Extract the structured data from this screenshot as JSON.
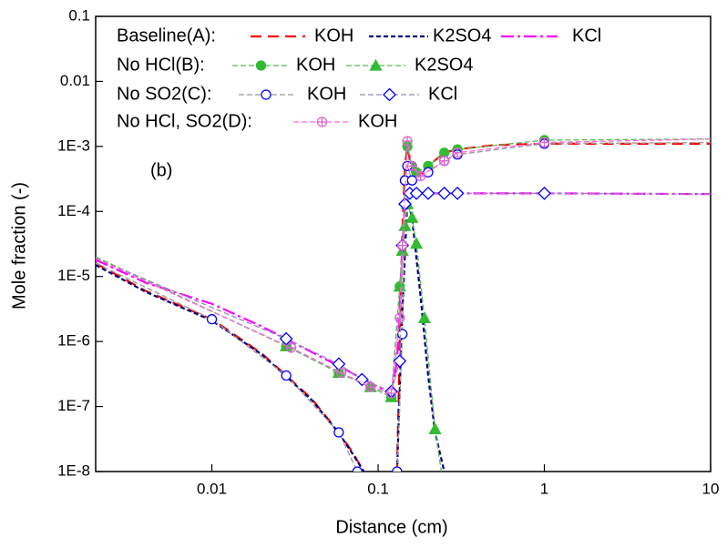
{
  "chart_data": {
    "type": "line",
    "x_label": "Distance (cm)",
    "y_label": "Mole fraction (-)",
    "annotation": "(b)",
    "log_x": true,
    "log_y": true,
    "xlim": [
      0.002,
      10
    ],
    "xticks": [
      0.01,
      0.1,
      1,
      10
    ],
    "ylim": [
      1e-08,
      0.1
    ],
    "yticks": [
      0.1,
      0.01,
      {
        "value": 0.001,
        "label": "1E-3"
      },
      {
        "value": 0.0001,
        "label": "1E-4"
      },
      {
        "value": 1e-05,
        "label": "1E-5"
      },
      {
        "value": 1e-06,
        "label": "1E-6"
      },
      {
        "value": 1e-07,
        "label": "1E-7"
      },
      {
        "value": 1e-08,
        "label": "1E-8"
      }
    ],
    "groups": [
      {
        "label": "Baseline(A):",
        "series": [
          {
            "name": "KOH",
            "color": "#ff0000",
            "dash": "12 7",
            "width": 2.2,
            "marker": "none",
            "x": [
              0.002,
              0.004,
              0.01,
              0.02,
              0.028,
              0.04,
              0.058,
              0.07,
              0.082,
              0.1,
              0.13,
              0.135,
              0.14,
              0.145,
              0.15,
              0.16,
              0.18,
              0.2,
              0.25,
              0.3,
              0.5,
              1,
              10
            ],
            "values": [
              1.6e-05,
              6e-06,
              2.2e-06,
              6.5e-07,
              3e-07,
              1.3e-07,
              4e-08,
              2e-08,
              1e-08,
              null,
              1e-08,
              1e-06,
              5e-05,
              0.0005,
              0.001,
              0.0004,
              0.00035,
              0.0005,
              0.0008,
              0.0009,
              0.00105,
              0.0011,
              0.0011
            ]
          },
          {
            "name": "K2SO4",
            "color": "#000080",
            "dash": "5 3",
            "width": 2.2,
            "marker": "none",
            "x": [
              0.002,
              0.004,
              0.01,
              0.02,
              0.028,
              0.04,
              0.058,
              0.07,
              0.082,
              0.1,
              0.13,
              0.14,
              0.15,
              0.16,
              0.18,
              0.2,
              0.22,
              0.25
            ],
            "values": [
              1.5e-05,
              5.8e-06,
              2.1e-06,
              6.3e-07,
              2.9e-07,
              1.25e-07,
              3.9e-08,
              1.9e-08,
              1e-08,
              null,
              1e-08,
              3e-06,
              0.00015,
              8e-05,
              5e-06,
              3e-07,
              4e-08,
              1e-08
            ]
          },
          {
            "name": "KCl",
            "color": "#ff00ff",
            "dash": "14 4 3 4",
            "width": 2.2,
            "marker": "none",
            "x": [
              0.002,
              0.004,
              0.01,
              0.02,
              0.03,
              0.06,
              0.09,
              0.12,
              0.13,
              0.14,
              0.145,
              0.15,
              0.16,
              0.2,
              0.3,
              1,
              10
            ],
            "values": [
              1.8e-05,
              8e-06,
              3.8e-06,
              1.7e-06,
              1e-06,
              4e-07,
              2.3e-07,
              1.6e-07,
              5e-07,
              3e-05,
              0.00013,
              0.00019,
              0.00019,
              0.00019,
              0.00019,
              0.00019,
              0.000185
            ]
          }
        ]
      },
      {
        "label": "No HCl(B):",
        "series": [
          {
            "name": "KOH",
            "color": "#5cb85c",
            "marker_color": "#33bb33",
            "dash": "6 3",
            "width": 1.3,
            "marker": "circle-filled",
            "x": [
              0.002,
              0.028,
              0.058,
              0.09,
              0.12,
              0.135,
              0.14,
              0.145,
              0.15,
              0.16,
              0.17,
              0.2,
              0.25,
              0.3,
              1,
              10
            ],
            "values": [
              2e-05,
              8.5e-07,
              3.3e-07,
              2e-07,
              1.4e-07,
              7e-06,
              3e-05,
              0.0003,
              0.001,
              0.0005,
              0.0004,
              0.0005,
              0.0008,
              0.0009,
              0.00125,
              0.0013
            ]
          },
          {
            "name": "K2SO4",
            "color": "#5cb85c",
            "marker_color": "#33bb33",
            "dash": "6 3",
            "width": 1.3,
            "marker": "triangle",
            "x": [
              0.002,
              0.028,
              0.058,
              0.09,
              0.12,
              0.135,
              0.14,
              0.145,
              0.15,
              0.16,
              0.17,
              0.19,
              0.22,
              0.24
            ],
            "values": [
              2e-05,
              8.5e-07,
              3.3e-07,
              2e-07,
              1.4e-07,
              7e-06,
              2.5e-05,
              6e-05,
              0.00013,
              8e-05,
              3.2e-05,
              2.3e-06,
              4.5e-08,
              1e-08
            ]
          }
        ]
      },
      {
        "label": "No SO2(C):",
        "series": [
          {
            "name": "KOH",
            "color": "#999999",
            "marker_color": "#0000ff",
            "dash": "6 3",
            "width": 1.3,
            "marker": "circle-open",
            "x": [
              0.002,
              0.01,
              0.028,
              0.058,
              0.075,
              0.1,
              0.13,
              0.14,
              0.145,
              0.15,
              0.16,
              0.2,
              0.25,
              0.3,
              1,
              10
            ],
            "values": [
              1.6e-05,
              2.2e-06,
              3e-07,
              4e-08,
              1e-08,
              null,
              1e-08,
              1.3e-06,
              0.0003,
              0.0005,
              0.0003,
              0.0004,
              0.0006,
              0.00075,
              0.0011,
              0.00115
            ]
          },
          {
            "name": "KCl",
            "color": "#9988bb",
            "marker_color": "#0000ff",
            "dash": "6 3",
            "width": 1.3,
            "marker": "diamond-open",
            "x": [
              0.002,
              0.028,
              0.058,
              0.08,
              0.12,
              0.135,
              0.14,
              0.145,
              0.155,
              0.17,
              0.2,
              0.25,
              0.3,
              1,
              10
            ],
            "values": [
              1.9e-05,
              1.1e-06,
              4.5e-07,
              2.6e-07,
              1.7e-07,
              5e-07,
              3e-05,
              0.00013,
              0.00019,
              0.00019,
              0.00019,
              0.00019,
              0.00019,
              0.00019,
              0.000185
            ]
          }
        ]
      },
      {
        "label": "No HCl, SO2(D):",
        "series": [
          {
            "name": "KOH",
            "color": "#ff66dd",
            "marker_color": "#dd66cc",
            "dash": "6 3",
            "width": 1.3,
            "marker": "circle-cross",
            "x": [
              0.002,
              0.03,
              0.06,
              0.09,
              0.12,
              0.135,
              0.14,
              0.15,
              0.16,
              0.18,
              0.25,
              0.3,
              1,
              10
            ],
            "values": [
              1.9e-05,
              8e-07,
              3.3e-07,
              2e-07,
              1.6e-07,
              2.3e-06,
              3e-05,
              0.0012,
              0.0005,
              0.00035,
              0.0006,
              0.0008,
              0.00115,
              0.0013
            ]
          }
        ]
      }
    ]
  }
}
